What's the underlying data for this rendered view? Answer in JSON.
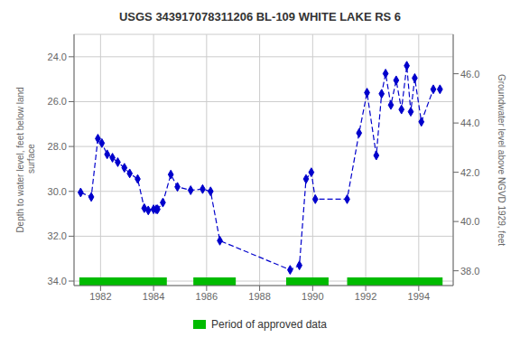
{
  "chart_data": {
    "type": "line",
    "title": "USGS 343917078311206 BL-109 WHITE LAKE RS 6",
    "ylabel": "Depth to water level, feet below land\n surface",
    "y2label": "Groundwater level above NGVD 1929, feet",
    "x": [
      1981.25,
      1981.65,
      1981.9,
      1982.05,
      1982.25,
      1982.45,
      1982.65,
      1982.9,
      1983.1,
      1983.4,
      1983.65,
      1983.8,
      1984.0,
      1984.1,
      1984.15,
      1984.35,
      1984.65,
      1984.9,
      1985.4,
      1985.85,
      1986.15,
      1986.5,
      1989.15,
      1989.5,
      1989.75,
      1989.95,
      1990.1,
      1991.3,
      1991.75,
      1992.05,
      1992.4,
      1992.6,
      1992.75,
      1992.95,
      1993.15,
      1993.35,
      1993.55,
      1993.7,
      1993.85,
      1994.1,
      1994.55,
      1994.8
    ],
    "values": [
      30.05,
      30.25,
      27.65,
      27.85,
      28.35,
      28.5,
      28.7,
      28.95,
      29.2,
      29.45,
      30.75,
      30.85,
      30.8,
      30.8,
      30.8,
      30.5,
      29.25,
      29.8,
      29.95,
      29.9,
      30.0,
      32.2,
      33.5,
      33.3,
      29.45,
      29.15,
      30.35,
      30.35,
      27.4,
      25.6,
      28.4,
      25.65,
      24.75,
      26.15,
      25.05,
      26.35,
      24.4,
      26.45,
      24.95,
      26.9,
      25.45,
      25.45
    ],
    "color": "#0000CC",
    "marker": "diamond",
    "line_style": "dashed",
    "xlim": [
      1981.0,
      1995.3
    ],
    "xticks": [
      1982,
      1984,
      1986,
      1988,
      1990,
      1992,
      1994
    ],
    "ylim": [
      34.2,
      23.0
    ],
    "yticks": [
      {
        "value": 24.0,
        "label": "24.0"
      },
      {
        "value": 26.0,
        "label": "26.0"
      },
      {
        "value": 28.0,
        "label": "28.0"
      },
      {
        "value": 30.0,
        "label": "30.0"
      },
      {
        "value": 32.0,
        "label": "32.0"
      },
      {
        "value": 34.0,
        "label": "34.0"
      }
    ],
    "y2lim": [
      37.4,
      47.6
    ],
    "y2ticks": [
      {
        "value": 38.0,
        "label": "38.0"
      },
      {
        "value": 40.0,
        "label": "40.0"
      },
      {
        "value": 42.0,
        "label": "42.0"
      },
      {
        "value": 44.0,
        "label": "44.0"
      },
      {
        "value": 46.0,
        "label": "46.0"
      }
    ],
    "grid": true,
    "legend": "bottom",
    "approved_periods": {
      "name": "Period of approved data",
      "color": "#00BB00",
      "ranges": [
        [
          1981.2,
          1984.5
        ],
        [
          1985.5,
          1987.1
        ],
        [
          1989.0,
          1990.6
        ],
        [
          1991.3,
          1994.9
        ]
      ]
    }
  }
}
